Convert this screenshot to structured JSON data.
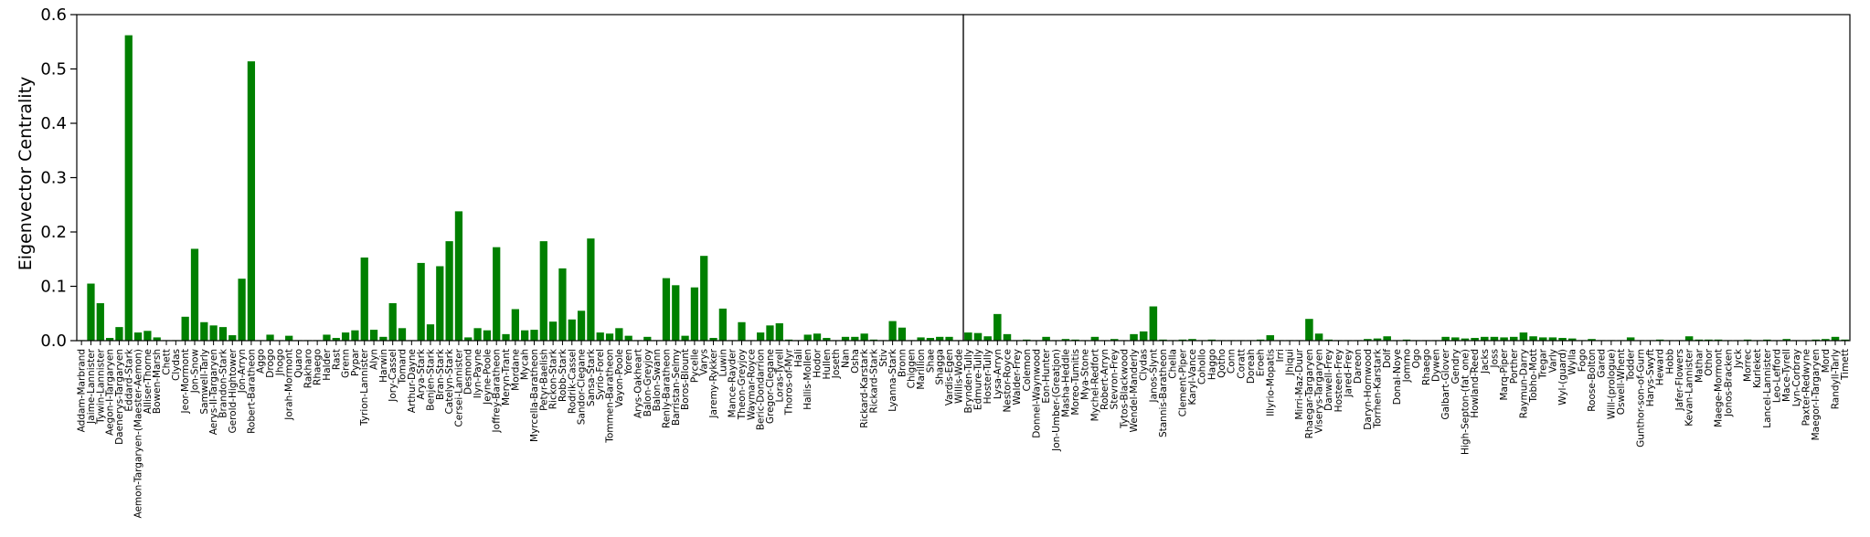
{
  "chart_data": {
    "type": "bar",
    "ylabel": "Eigenvector Centrality",
    "ylim": [
      0,
      0.6
    ],
    "yticks": [
      "0.0",
      "0.1",
      "0.2",
      "0.3",
      "0.4",
      "0.5",
      "0.6"
    ],
    "bar_color": "#008000",
    "grid": false,
    "panels": [
      {
        "categories": [
          "Addam-Marbrand",
          "Jaime-Lannister",
          "Tywin-Lannister",
          "Aegon-I-Targaryen",
          "Daenerys-Targaryen",
          "Eddard-Stark",
          "Aemon-Targaryen-(Maester-Aemon)",
          "Alliser-Thorne",
          "Bowen-Marsh",
          "Chett",
          "Clydas",
          "Jeor-Mormont",
          "Jon-Snow",
          "Samwell-Tarly",
          "Aerys-II-Targaryen",
          "Brandon-Stark",
          "Gerold-Hightower",
          "Jon-Arryn",
          "Robert-Baratheon",
          "Aggo",
          "Drogo",
          "Jhogo",
          "Jorah-Mormont",
          "Quaro",
          "Rakharo",
          "Rhaego",
          "Halder",
          "Rast",
          "Grenn",
          "Pypar",
          "Tyrion-Lannister",
          "Alyn",
          "Harwin",
          "Jory-Cassel",
          "Tomard",
          "Arthur-Dayne",
          "Arya-Stark",
          "Benjen-Stark",
          "Bran-Stark",
          "Catelyn-Stark",
          "Cersei-Lannister",
          "Desmond",
          "Ilyn-Payne",
          "Jeyne-Poole",
          "Joffrey-Baratheon",
          "Meryn-Trant",
          "Mordane",
          "Mycah",
          "Myrcella-Baratheon",
          "Petyr-Baelish",
          "Rickon-Stark",
          "Robb-Stark",
          "Rodrik-Cassel",
          "Sandor-Clegane",
          "Sansa-Stark",
          "Syrio-Forel",
          "Tommen-Baratheon",
          "Vayon-Poole",
          "Yoren",
          "Arys-Oakheart",
          "Balon-Greyjoy",
          "Balon-Swann",
          "Renly-Baratheon",
          "Barristan-Selmy",
          "Boros-Blount",
          "Pycelle",
          "Varys",
          "Jaremy-Rykker",
          "Luwin",
          "Mance-Rayder",
          "Theon-Greyjoy",
          "Waymar-Royce",
          "Beric-Dondarrion",
          "Gregor-Clegane",
          "Loras-Tyrell",
          "Thoros-of-Myr",
          "Hali",
          "Hallis-Mollen",
          "Hodor",
          "Hullen",
          "Joseth",
          "Nan",
          "Osha",
          "Rickard-Karstark",
          "Rickard-Stark",
          "Stiv",
          "Lyanna-Stark",
          "Bronn",
          "Chiggen",
          "Marillion",
          "Shae",
          "Shagga",
          "Vardis-Egen",
          "Willis-Wode"
        ],
        "values": [
          0.001,
          0.105,
          0.069,
          0.005,
          0.025,
          0.562,
          0.015,
          0.018,
          0.006,
          0.001,
          0.001,
          0.044,
          0.169,
          0.034,
          0.028,
          0.025,
          0.01,
          0.114,
          0.514,
          0.001,
          0.011,
          0.001,
          0.009,
          0.001,
          0.001,
          0.001,
          0.011,
          0.005,
          0.015,
          0.019,
          0.153,
          0.02,
          0.007,
          0.069,
          0.023,
          0.001,
          0.143,
          0.03,
          0.137,
          0.183,
          0.238,
          0.006,
          0.023,
          0.019,
          0.172,
          0.012,
          0.058,
          0.019,
          0.02,
          0.183,
          0.035,
          0.133,
          0.039,
          0.055,
          0.188,
          0.015,
          0.013,
          0.023,
          0.009,
          0.001,
          0.007,
          0.001,
          0.115,
          0.102,
          0.009,
          0.098,
          0.156,
          0.005,
          0.059,
          0.001,
          0.034,
          0.001,
          0.015,
          0.028,
          0.032,
          0.002,
          0.001,
          0.011,
          0.013,
          0.005,
          0.001,
          0.007,
          0.007,
          0.013,
          0.002,
          0.001,
          0.036,
          0.024,
          0.001,
          0.006,
          0.005,
          0.007,
          0.007,
          0.001
        ]
      },
      {
        "categories": [
          "Brynden-Tully",
          "Edmure-Tully",
          "Hoster-Tully",
          "Lysa-Arryn",
          "Nestor-Royce",
          "Walder-Frey",
          "Colemon",
          "Donnel-Waynwood",
          "Eon-Hunter",
          "Jon-Umber-(Greatjon)",
          "Masha-Heddle",
          "Moreo-Tumitis",
          "Mya-Stone",
          "Mychel-Redfort",
          "Robert-Arryn",
          "Stevron-Frey",
          "Tytos-Blackwood",
          "Wendel-Manderly",
          "Clydas",
          "Janos-Slynt",
          "Stannis-Baratheon",
          "Chella",
          "Clement-Piper",
          "Karyl-Vance",
          "Cohollo",
          "Haggo",
          "Qotho",
          "Conn",
          "Coratt",
          "Doreah",
          "Eroeh",
          "Illyrio-Mopatis",
          "Irri",
          "Jhiqui",
          "Mirri-Maz-Duur",
          "Rhaegar-Targaryen",
          "Viserys-Targaryen",
          "Danwell-Frey",
          "Hosteen-Frey",
          "Jared-Frey",
          "Dareon",
          "Daryn-Hornwood",
          "Torrhen-Karstark",
          "Dolf",
          "Donal-Noye",
          "Jommo",
          "Ogo",
          "Rhaego",
          "Dywen",
          "Galbart-Glover",
          "Gendry",
          "High-Septon-(fat_one)",
          "Howland-Reed",
          "Jacks",
          "Joss",
          "Marq-Piper",
          "Porther",
          "Raymun-Darry",
          "Tobho-Mott",
          "Tregar",
          "Varly",
          "Wyl-(guard)",
          "Wylla",
          "Fogo",
          "Roose-Bolton",
          "Gared",
          "Will-(prologue)",
          "Oswell-Whent",
          "Todder",
          "Gunthor-son-of-Gurn",
          "Harys-Swyft",
          "Heward",
          "Hobb",
          "Jafer-Flowers",
          "Kevan-Lannister",
          "Mathar",
          "Othor",
          "Maege-Mormont",
          "Jonos-Bracken",
          "Jyck",
          "Morrec",
          "Kurleket",
          "Lancel-Lannister",
          "Leo-Lefford",
          "Mace-Tyrell",
          "Lyn-Corbray",
          "Paxter-Redwyne",
          "Maegor-I-Targaryen",
          "Mord",
          "Randyll-Tarly",
          "Timett"
        ],
        "values": [
          0.015,
          0.014,
          0.008,
          0.049,
          0.012,
          0.001,
          0.002,
          0.001,
          0.007,
          0.001,
          0.003,
          0.002,
          0.001,
          0.007,
          0.001,
          0.003,
          0.001,
          0.012,
          0.017,
          0.063,
          0.002,
          0.001,
          0.002,
          0.003,
          0.001,
          0.002,
          0.001,
          0.001,
          0.001,
          0.001,
          0.002,
          0.01,
          0.001,
          0.001,
          0.001,
          0.04,
          0.013,
          0.002,
          0.001,
          0.001,
          0.001,
          0.003,
          0.004,
          0.008,
          0.001,
          0.002,
          0.001,
          0.001,
          0.001,
          0.007,
          0.006,
          0.004,
          0.005,
          0.007,
          0.007,
          0.006,
          0.007,
          0.015,
          0.008,
          0.006,
          0.006,
          0.005,
          0.004,
          0.001,
          0.003,
          0.001,
          0.001,
          0.001,
          0.006,
          0.001,
          0.001,
          0.002,
          0.001,
          0.001,
          0.008,
          0.002,
          0.002,
          0.002,
          0.001,
          0.001,
          0.002,
          0.001,
          0.002,
          0.001,
          0.003,
          0.001,
          0.001,
          0.002,
          0.003,
          0.007,
          0.002
        ]
      }
    ]
  }
}
